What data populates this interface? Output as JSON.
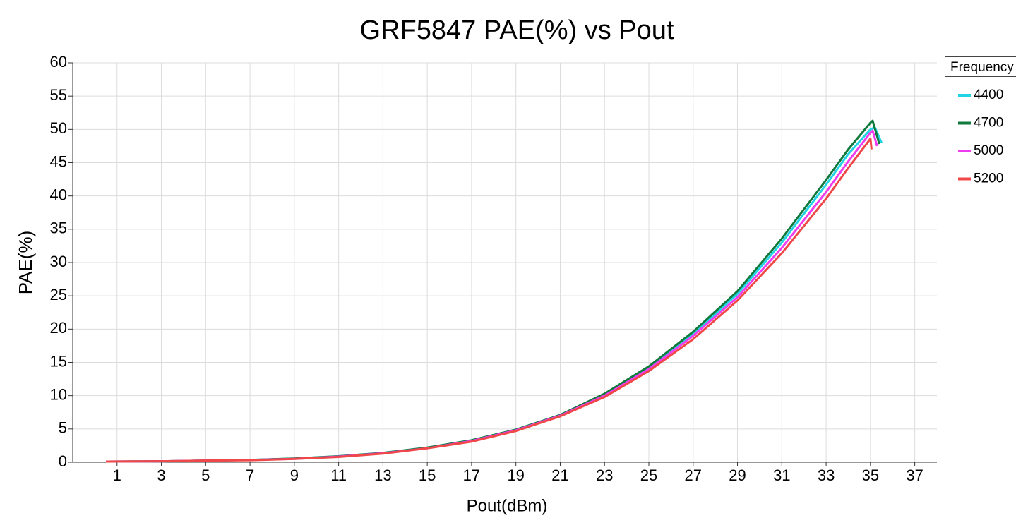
{
  "chart_data": {
    "type": "line",
    "title": "GRF5847 PAE(%) vs Pout",
    "x_label": "Pout(dBm)",
    "y_label": "PAE(%)",
    "legend_title": "Frequency",
    "legend": "right",
    "grid": true,
    "xlim": [
      -1,
      38
    ],
    "ylim": [
      0,
      60
    ],
    "xticks": [
      1,
      3,
      5,
      7,
      9,
      11,
      13,
      15,
      17,
      19,
      21,
      23,
      25,
      27,
      29,
      31,
      33,
      35,
      37
    ],
    "yticks": [
      0,
      5,
      10,
      15,
      20,
      25,
      30,
      35,
      40,
      45,
      50,
      55,
      60
    ],
    "series": [
      {
        "name": "4400",
        "color": "#22d3e6",
        "x": [
          0.6,
          3,
          5,
          7,
          9,
          11,
          13,
          15,
          17,
          19,
          21,
          23,
          25,
          27,
          29,
          31,
          33,
          34,
          35,
          35.2,
          35.5
        ],
        "values": [
          0.1,
          0.15,
          0.25,
          0.35,
          0.55,
          0.9,
          1.4,
          2.2,
          3.3,
          4.9,
          7.1,
          10.2,
          14.2,
          19.3,
          25.3,
          33.0,
          41.7,
          46.3,
          50.0,
          50.3,
          48.0
        ]
      },
      {
        "name": "4700",
        "color": "#107a3c",
        "x": [
          0.6,
          3,
          5,
          7,
          9,
          11,
          13,
          15,
          17,
          19,
          21,
          23,
          25,
          27,
          29,
          31,
          33,
          34,
          35,
          35.1,
          35.4
        ],
        "values": [
          0.1,
          0.15,
          0.25,
          0.35,
          0.55,
          0.9,
          1.4,
          2.2,
          3.3,
          4.9,
          7.1,
          10.3,
          14.4,
          19.6,
          25.7,
          33.6,
          42.4,
          47.0,
          51.0,
          51.3,
          47.8
        ]
      },
      {
        "name": "5000",
        "color": "#f03cf0",
        "x": [
          0.5,
          3,
          5,
          7,
          9,
          11,
          13,
          15,
          17,
          19,
          21,
          23,
          25,
          27,
          29,
          31,
          33,
          34,
          35,
          35.1,
          35.3
        ],
        "values": [
          0.1,
          0.15,
          0.25,
          0.35,
          0.5,
          0.85,
          1.35,
          2.1,
          3.2,
          4.8,
          7.0,
          10.0,
          14.0,
          19.0,
          24.8,
          32.2,
          40.6,
          45.2,
          49.5,
          49.8,
          47.5
        ]
      },
      {
        "name": "5200",
        "color": "#f04848",
        "x": [
          0.5,
          3,
          5,
          7,
          9,
          11,
          13,
          15,
          17,
          19,
          21,
          23,
          25,
          27,
          29,
          31,
          33,
          34,
          35,
          35.05
        ],
        "values": [
          0.1,
          0.15,
          0.25,
          0.3,
          0.5,
          0.8,
          1.3,
          2.1,
          3.1,
          4.7,
          6.9,
          9.8,
          13.7,
          18.5,
          24.3,
          31.4,
          39.6,
          44.2,
          48.6,
          47.0
        ]
      }
    ]
  }
}
